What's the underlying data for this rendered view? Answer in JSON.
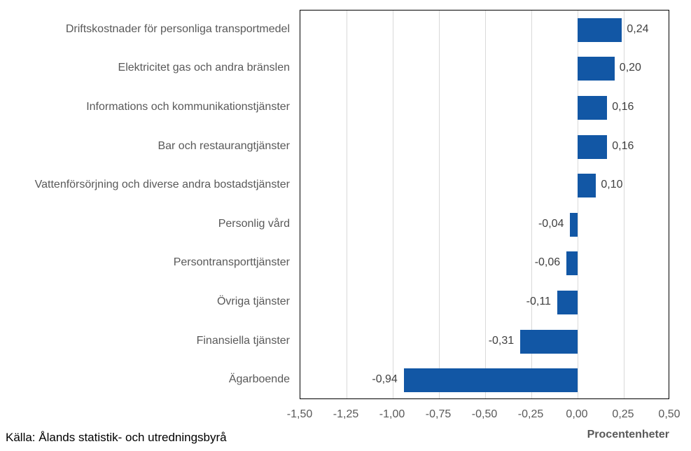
{
  "chart_data": {
    "type": "bar",
    "orientation": "horizontal",
    "title": "",
    "categories": [
      "Driftskostnader för personliga transportmedel",
      "Elektricitet gas och andra bränslen",
      "Informations och kommunikationstjänster",
      "Bar och restaurangtjänster",
      "Vattenförsörjning och diverse andra bostadstjänster",
      "Personlig vård",
      "Persontransporttjänster",
      "Övriga tjänster",
      "Finansiella tjänster",
      "Ägarboende"
    ],
    "values": [
      0.24,
      0.2,
      0.16,
      0.16,
      0.1,
      -0.04,
      -0.06,
      -0.11,
      -0.31,
      -0.94
    ],
    "value_labels": [
      "0,24",
      "0,20",
      "0,16",
      "0,16",
      "0,10",
      "-0,04",
      "-0,06",
      "-0,11",
      "-0,31",
      "-0,94"
    ],
    "xlabel": "Procentenheter",
    "ylabel": "",
    "xlim": [
      -1.5,
      0.5
    ],
    "xticks": [
      -1.5,
      -1.25,
      -1.0,
      -0.75,
      -0.5,
      -0.25,
      0.0,
      0.25,
      0.5
    ],
    "xtick_labels": [
      "-1,50",
      "-1,25",
      "-1,00",
      "-0,75",
      "-0,50",
      "-0,25",
      "0,00",
      "0,25",
      "0,50"
    ],
    "grid": true,
    "legend": false
  },
  "source_note": "Källa: Ålands statistik- och utredningsbyrå",
  "colors": {
    "bar": "#1257a5",
    "grid": "#d9d9d9",
    "plot_border": "#000000",
    "category_label": "#595959",
    "value_label": "#404040",
    "tick_label": "#595959",
    "xlabel": "#595959",
    "source": "#000000",
    "background": "#ffffff"
  }
}
